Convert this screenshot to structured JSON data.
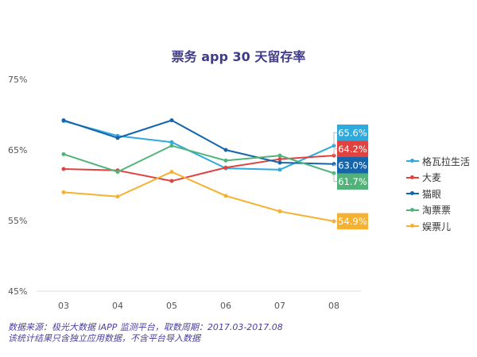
{
  "chart_data": {
    "type": "line",
    "title": "票务 app 30 天留存率",
    "xlabel": "",
    "ylabel": "",
    "x": [
      "03",
      "04",
      "05",
      "06",
      "07",
      "08"
    ],
    "y_ticks": [
      "75%",
      "65%",
      "55%",
      "45%"
    ],
    "ylim": [
      45,
      75
    ],
    "grid": false,
    "legend_position": "right",
    "series": [
      {
        "name": "格瓦拉生活",
        "color": "#2eaadc",
        "values": [
          69.1,
          67.0,
          66.1,
          62.4,
          62.2,
          65.6
        ],
        "end_label": "65.6%"
      },
      {
        "name": "大麦",
        "color": "#e0433f",
        "values": [
          62.3,
          62.1,
          60.6,
          62.5,
          63.7,
          64.2
        ],
        "end_label": "64.2%"
      },
      {
        "name": "猫眼",
        "color": "#1565ad",
        "values": [
          69.2,
          66.7,
          69.2,
          65.0,
          63.2,
          63.0
        ],
        "end_label": "63.0%"
      },
      {
        "name": "淘票票",
        "color": "#52b37a",
        "values": [
          64.4,
          61.9,
          65.6,
          63.5,
          64.2,
          61.7
        ],
        "end_label": "61.7%"
      },
      {
        "name": "娱票儿",
        "color": "#f5b131",
        "values": [
          59.0,
          58.4,
          61.9,
          58.5,
          56.3,
          54.9
        ],
        "end_label": "54.9%"
      }
    ]
  },
  "footer": {
    "line1": "数据来源：极光大数据 iAPP 监测平台，取数周期：2017.03-2017.08",
    "line2": "该统计结果只含独立应用数据，不含平台导入数据"
  }
}
